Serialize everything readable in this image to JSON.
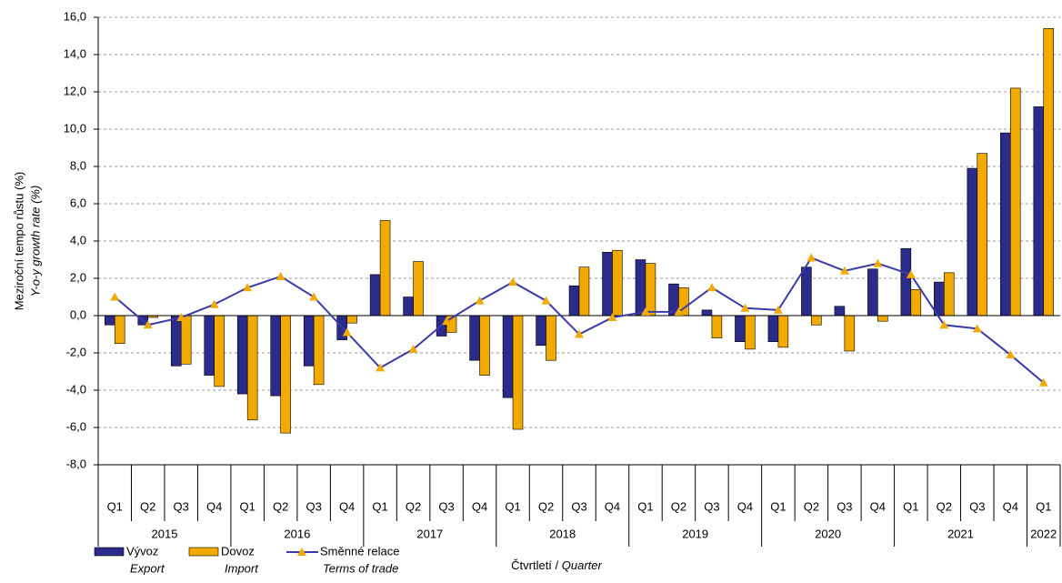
{
  "chart_data": {
    "type": "bar_line",
    "ylabel": [
      "Meziroční tempo růstu (%)",
      "Y-o-y growth rate (%)"
    ],
    "xlabel": [
      "Čtvrtletí /",
      "Quarter"
    ],
    "categories": [
      "Q1",
      "Q2",
      "Q3",
      "Q4",
      "Q1",
      "Q2",
      "Q3",
      "Q4",
      "Q1",
      "Q2",
      "Q3",
      "Q4",
      "Q1",
      "Q2",
      "Q3",
      "Q4",
      "Q1",
      "Q2",
      "Q3",
      "Q4",
      "Q1",
      "Q2",
      "Q3",
      "Q4",
      "Q1",
      "Q2",
      "Q3",
      "Q4",
      "Q1"
    ],
    "years": [
      "2015",
      "2016",
      "2017",
      "2018",
      "2019",
      "2020",
      "2021",
      "2022"
    ],
    "series": [
      {
        "name": "Vývoz",
        "name_en": "Export",
        "kind": "bar",
        "color": "#2b2b8c",
        "values": [
          -0.5,
          -0.5,
          -2.7,
          -3.2,
          -4.2,
          -4.3,
          -2.7,
          -1.3,
          2.2,
          1.0,
          -1.1,
          -2.4,
          -4.4,
          -1.6,
          1.6,
          3.4,
          3.0,
          1.7,
          0.3,
          -1.4,
          -1.4,
          2.6,
          0.5,
          2.5,
          3.6,
          1.8,
          7.9,
          9.8,
          11.2
        ]
      },
      {
        "name": "Dovoz",
        "name_en": "Import",
        "kind": "bar",
        "color": "#f2a900",
        "values": [
          -1.5,
          -0.1,
          -2.6,
          -3.8,
          -5.6,
          -6.3,
          -3.7,
          -0.4,
          5.1,
          2.9,
          -0.9,
          -3.2,
          -6.1,
          -2.4,
          2.6,
          3.5,
          2.8,
          1.5,
          -1.2,
          -1.8,
          -1.7,
          -0.5,
          -1.9,
          -0.3,
          1.4,
          2.3,
          8.7,
          12.2,
          15.4
        ]
      },
      {
        "name": "Směnné relace",
        "name_en": "Terms of trade",
        "kind": "line",
        "color": "#3a3aa8",
        "marker_color": "#f2a900",
        "values": [
          1.0,
          -0.5,
          -0.1,
          0.6,
          1.5,
          2.1,
          1.0,
          -0.9,
          -2.8,
          -1.8,
          -0.3,
          0.8,
          1.8,
          0.8,
          -1.0,
          -0.1,
          0.2,
          0.2,
          1.5,
          0.4,
          0.3,
          3.1,
          2.4,
          2.8,
          2.2,
          -0.5,
          -0.7,
          -2.1,
          -3.6
        ]
      }
    ],
    "ylim": [
      -8,
      16
    ],
    "yticks": [
      {
        "value": -8,
        "label": "-8,0"
      },
      {
        "value": -6,
        "label": "-6,0"
      },
      {
        "value": -4,
        "label": "-4,0"
      },
      {
        "value": -2,
        "label": "-2,0"
      },
      {
        "value": 0,
        "label": "0,0"
      },
      {
        "value": 2,
        "label": "2,0"
      },
      {
        "value": 4,
        "label": "4,0"
      },
      {
        "value": 6,
        "label": "6,0"
      },
      {
        "value": 8,
        "label": "8,0"
      },
      {
        "value": 10,
        "label": "10,0"
      },
      {
        "value": 12,
        "label": "12,0"
      },
      {
        "value": 14,
        "label": "14,0"
      },
      {
        "value": 16,
        "label": "16,0"
      }
    ],
    "grid": true
  }
}
